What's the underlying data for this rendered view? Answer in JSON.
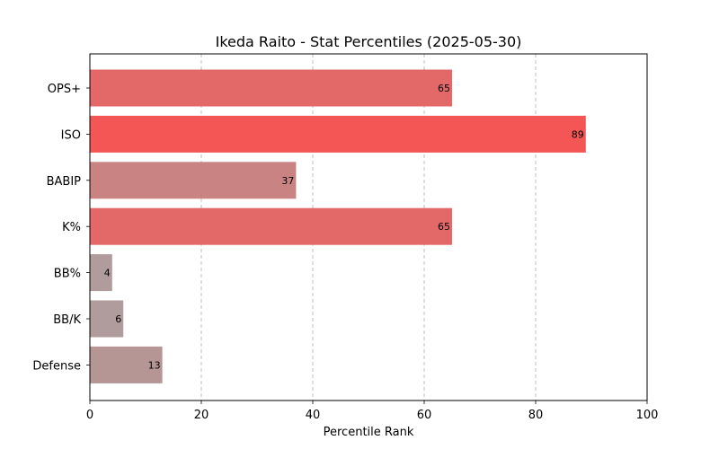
{
  "chart_data": {
    "type": "bar",
    "orientation": "horizontal",
    "title": "Ikeda Raito - Stat Percentiles (2025-05-30)",
    "xlabel": "Percentile Rank",
    "ylabel": "",
    "xlim": [
      0,
      100
    ],
    "xticks": [
      0,
      20,
      40,
      60,
      80,
      100
    ],
    "grid": "x-axis dashed",
    "categories": [
      "OPS+",
      "ISO",
      "BABIP",
      "K%",
      "BB%",
      "BB/K",
      "Defense"
    ],
    "values": [
      65,
      89,
      37,
      65,
      4,
      6,
      13
    ],
    "colors": [
      "#e36868",
      "#f45656",
      "#c98383",
      "#e36868",
      "#b09c9c",
      "#b09c9c",
      "#b59694"
    ]
  }
}
